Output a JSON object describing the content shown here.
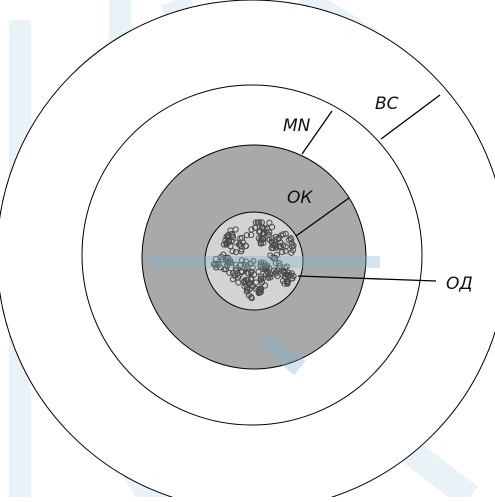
{
  "labels": {
    "outer_ring": "ВС",
    "middle_ring": "MN",
    "core_zone": "ОК",
    "center": "ОД"
  },
  "colors": {
    "background": "#ffffff",
    "stroke": "#000000",
    "core_fill": "#a9a9a9",
    "center_fill": "#d4d4d4",
    "particle": "#4a4a4a",
    "watermark": "#cfe3ee"
  }
}
